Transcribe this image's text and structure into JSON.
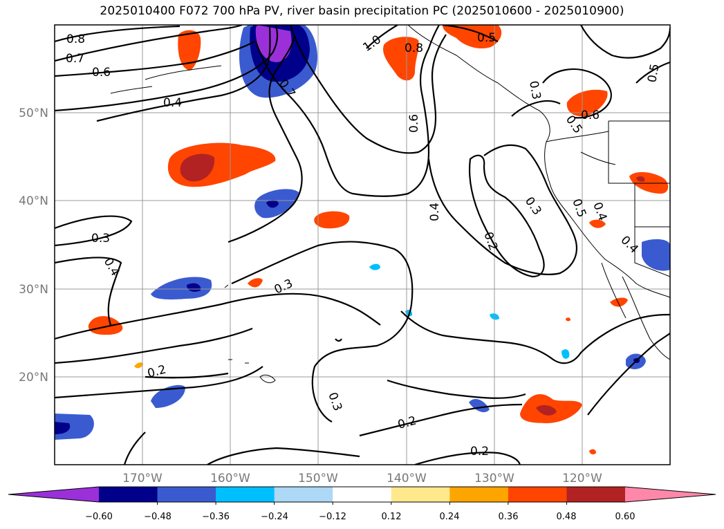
{
  "title": "2025010400 F072 700 hPa PV, river basin precipitation PC (2025010600 - 2025010900)",
  "lat_labels": [
    "50°N",
    "40°N",
    "30°N",
    "20°N"
  ],
  "lon_labels": [
    "170°W",
    "160°W",
    "150°W",
    "140°W",
    "130°W",
    "120°W"
  ],
  "contour_labels": [
    "0.8",
    "0.7",
    "0.6",
    "0.4",
    "1.0",
    "0.8",
    "0.5",
    "0.7",
    "0.6",
    "0.3",
    "0.5",
    "0.6",
    "0.5",
    "0.4",
    "0.3",
    "0.4",
    "0.3",
    "0.2",
    "0.3",
    "0.4",
    "0.5",
    "0.4",
    "0.2",
    "0.3",
    "0.2",
    "0.2"
  ],
  "colorbar": {
    "ticks": [
      "−0.60",
      "−0.48",
      "−0.36",
      "−0.24",
      "−0.12",
      "0.12",
      "0.24",
      "0.36",
      "0.48",
      "0.60"
    ],
    "colors": [
      "#9b30d9",
      "#00008b",
      "#3a5bd0",
      "#00bfff",
      "#add8f6",
      "#ffffff",
      "#ffe98c",
      "#ffa500",
      "#ff4500",
      "#b22222",
      "#ff88aa"
    ]
  }
}
